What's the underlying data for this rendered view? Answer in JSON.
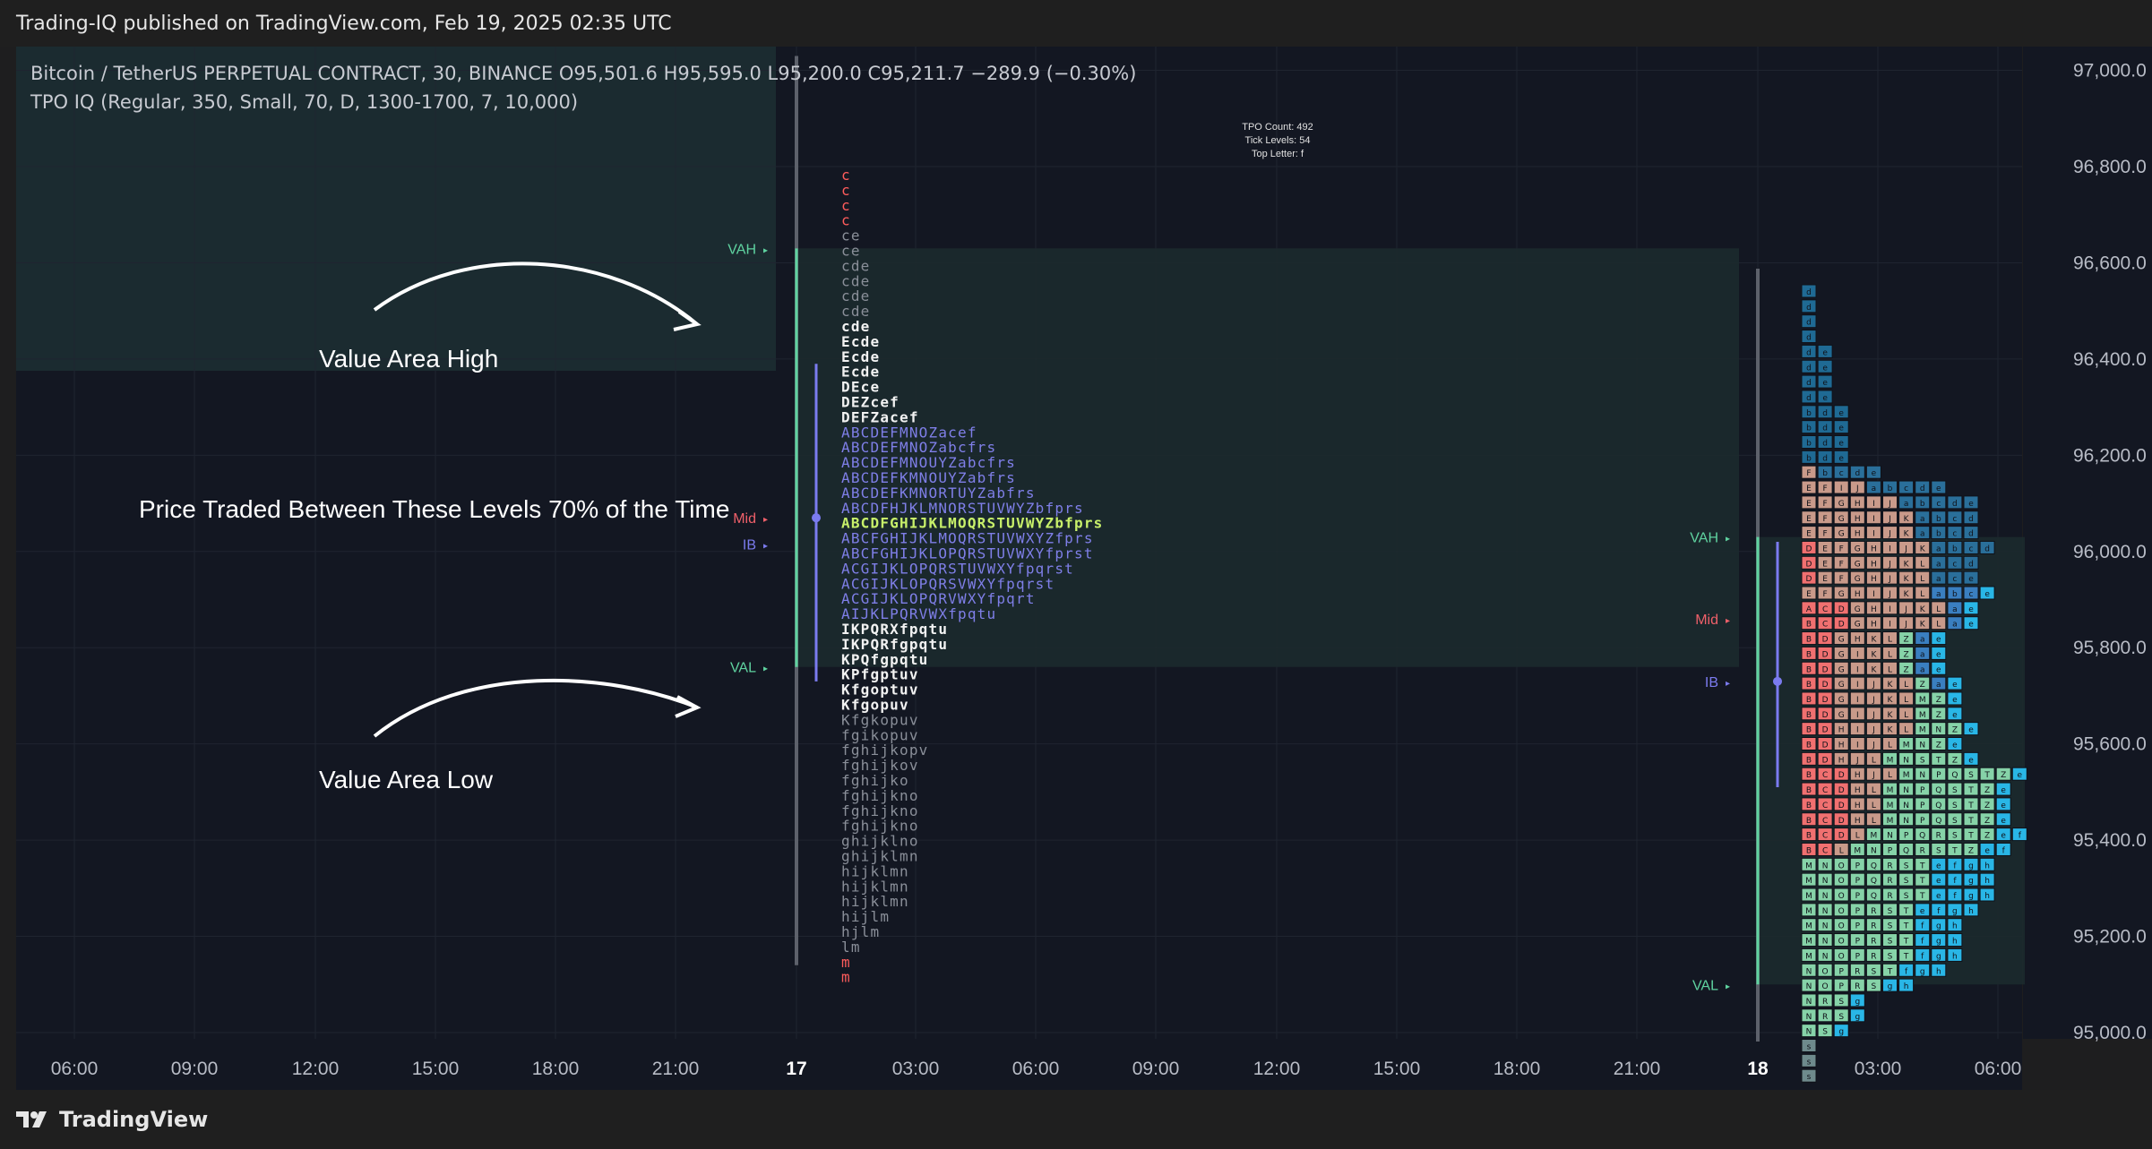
{
  "header": {
    "published": "Trading-IQ published on TradingView.com, Feb 19, 2025 02:35 UTC"
  },
  "legend": {
    "symbol_line": "Bitcoin / TetherUS PERPETUAL CONTRACT, 30, BINANCE  O95,501.6  H95,595.0  L95,200.0  C95,211.7  −289.9 (−0.30%)",
    "indicator_line": "TPO IQ (Regular, 350, Small, 70, D, 1300-1700, 7, 10,000)"
  },
  "footer": {
    "brand": "TradingView",
    "logo_icon": "tradingview-logo-icon"
  },
  "colors": {
    "background": "#131722",
    "axis_bg": "#131722",
    "grid": "#1f2430",
    "value_area": "#1c2a2e",
    "vah_val": "#5fd3a0",
    "mid": "#f0606a",
    "ib": "#7b7bef",
    "poc_text": "#c8f06a",
    "letters_in_va": "#7f7fe8",
    "letters_white": "#f2f2f2",
    "letters_grey": "#8a8f99",
    "edge_red": "#ff5c5c",
    "annotation": "#ffffff"
  },
  "chart_data": {
    "type": "market-profile",
    "y_axis": {
      "ticks": [
        "97,200.0",
        "97,000.0",
        "96,800.0",
        "96,600.0",
        "96,400.0",
        "96,200.0",
        "96,000.0",
        "95,800.0",
        "95,600.0",
        "95,400.0",
        "95,200.0",
        "95,000.0"
      ],
      "ylim": [
        94950,
        97250
      ]
    },
    "x_axis": {
      "ticks": [
        "06:00",
        "09:00",
        "12:00",
        "15:00",
        "18:00",
        "21:00",
        "17",
        "03:00",
        "06:00",
        "09:00",
        "12:00",
        "15:00",
        "18:00",
        "21:00",
        "18",
        "03:00",
        "06:00"
      ]
    },
    "stats": {
      "lines": [
        "TPO Count: 492",
        "Tick Levels: 54",
        "Top Letter:  f"
      ]
    },
    "annotations": [
      "Value Area High",
      "Price Traded Between These Levels 70% of the Time",
      "Value Area Low"
    ],
    "profile_1": {
      "vah": 96630,
      "val": 95760,
      "mid": 96070,
      "ib_top": 96390,
      "ib_bottom": 95730,
      "ib_mid": 96070,
      "range_high": 97030,
      "range_low": 95140,
      "labels": {
        "vah": "VAH",
        "val": "VAL",
        "mid": "Mid",
        "ib": "IB"
      },
      "rows": [
        {
          "t": "c",
          "c": "r"
        },
        {
          "t": "c",
          "c": "r"
        },
        {
          "t": "c",
          "c": "r"
        },
        {
          "t": "c",
          "c": "r"
        },
        {
          "t": "ce",
          "c": "g"
        },
        {
          "t": "ce",
          "c": "g"
        },
        {
          "t": "cde",
          "c": "g"
        },
        {
          "t": "cde",
          "c": "g"
        },
        {
          "t": "cde",
          "c": "g"
        },
        {
          "t": "cde",
          "c": "g"
        },
        {
          "t": "cde",
          "c": "w"
        },
        {
          "t": "Ecde",
          "c": "w"
        },
        {
          "t": "Ecde",
          "c": "w"
        },
        {
          "t": "Ecde",
          "c": "w"
        },
        {
          "t": "DEce",
          "c": "w"
        },
        {
          "t": "DEZcef",
          "c": "w"
        },
        {
          "t": "DEFZacef",
          "c": "w"
        },
        {
          "t": "ABCDEFMNOZacef",
          "c": "b"
        },
        {
          "t": "ABCDEFMNOZabcfrs",
          "c": "b"
        },
        {
          "t": "ABCDEFMNOUYZabcfrs",
          "c": "b"
        },
        {
          "t": "ABCDEFKMNOUYZabfrs",
          "c": "b"
        },
        {
          "t": "ABCDEFKMNORTUYZabfrs",
          "c": "b"
        },
        {
          "t": "ABCDFHJKLMNORSTUVWYZbfprs",
          "c": "b"
        },
        {
          "t": "ABCDFGHIJKLMOQRSTUVWYZbfprs",
          "c": "p"
        },
        {
          "t": "ABCFGHIJKLMOQRSTUVWXYZfprs",
          "c": "b"
        },
        {
          "t": "ABCFGHIJKLOPQRSTUVWXYfprst",
          "c": "b"
        },
        {
          "t": "ACGIJKLOPQRSTUVWXYfpqrst",
          "c": "b"
        },
        {
          "t": "ACGIJKLOPQRSVWXYfpqrst",
          "c": "b"
        },
        {
          "t": "ACGIJKLOPQRVWXYfpqrt",
          "c": "b"
        },
        {
          "t": "AIJKLPQRVWXfpqtu",
          "c": "b"
        },
        {
          "t": "IKPQRXfpqtu",
          "c": "w"
        },
        {
          "t": "IKPQRfgpqtu",
          "c": "w"
        },
        {
          "t": "KPQfgpqtu",
          "c": "w"
        },
        {
          "t": "KPfgptuv",
          "c": "w"
        },
        {
          "t": "Kfgoptuv",
          "c": "w"
        },
        {
          "t": "Kfgopuv",
          "c": "w"
        },
        {
          "t": "Kfgkopuv",
          "c": "g"
        },
        {
          "t": "fgikopuv",
          "c": "g"
        },
        {
          "t": "fghijkopv",
          "c": "g"
        },
        {
          "t": "fghijkov",
          "c": "g"
        },
        {
          "t": "fghijko",
          "c": "g"
        },
        {
          "t": "fghijkno",
          "c": "g"
        },
        {
          "t": "fghijkno",
          "c": "g"
        },
        {
          "t": "fghijkno",
          "c": "g"
        },
        {
          "t": "ghijklno",
          "c": "g"
        },
        {
          "t": "ghijklmn",
          "c": "g"
        },
        {
          "t": "hijklmn",
          "c": "g"
        },
        {
          "t": "hijklmn",
          "c": "g"
        },
        {
          "t": "hijklmn",
          "c": "g"
        },
        {
          "t": "hijlm",
          "c": "g"
        },
        {
          "t": "hjlm",
          "c": "g"
        },
        {
          "t": "lm",
          "c": "g"
        },
        {
          "t": "m",
          "c": "r"
        },
        {
          "t": "m",
          "c": "r"
        }
      ]
    },
    "profile_2": {
      "vah": 96030,
      "val": 95100,
      "mid": 95860,
      "ib_top": 96020,
      "ib_bottom": 95510,
      "ib_mid": 95730,
      "labels": {
        "vah": "VAH",
        "val": "VAL",
        "mid": "Mid",
        "ib": "IB"
      },
      "rows": [
        "d",
        "d",
        "d",
        "d",
        "de",
        "de",
        "de",
        "de",
        "bde",
        "bde",
        "bde",
        "bde",
        "Fbcde",
        "EFIJabcde",
        "EFGHIJabcde",
        "EFGHIJKabcd",
        "EFGHIJKabcd",
        "DEFGHIJKabcd",
        "DEFGHJKLacd",
        "DEFGHJKLace",
        "EFGHIJKLabce",
        "ACDGHIJKLae",
        "BCDGHIJKLae",
        "BDGHKLZae",
        "BDGIKLZae",
        "BDGIKLZae",
        "BDGIJKLZae",
        "BDGIJKLMZe",
        "BDGIJKLMZe",
        "BDHIJKLMNZe",
        "BDHIJLMNZe",
        "BDHJLMNSTZe",
        "BCDHJLMNPQSTZe",
        "BCDHLMNPQSTZe",
        "BCDHLMNPQSTZe",
        "BCDHLMNPQSTZe",
        "BCDLMNPQRSTZef",
        "BCLMNPQRSTZef",
        "MNOPQRSTefgh",
        "MNOPQRSTefgh",
        "MNOPQRSTefgh",
        "MNOPRSTefgh",
        "MNOPRSTfgh",
        "MNOPRSTfgh",
        "MNOPRSTfgh",
        "NOPRSTfgh",
        "NOPRSgh",
        "NRSg",
        "NRSg",
        "NSg",
        "s",
        "s",
        "s"
      ]
    }
  }
}
